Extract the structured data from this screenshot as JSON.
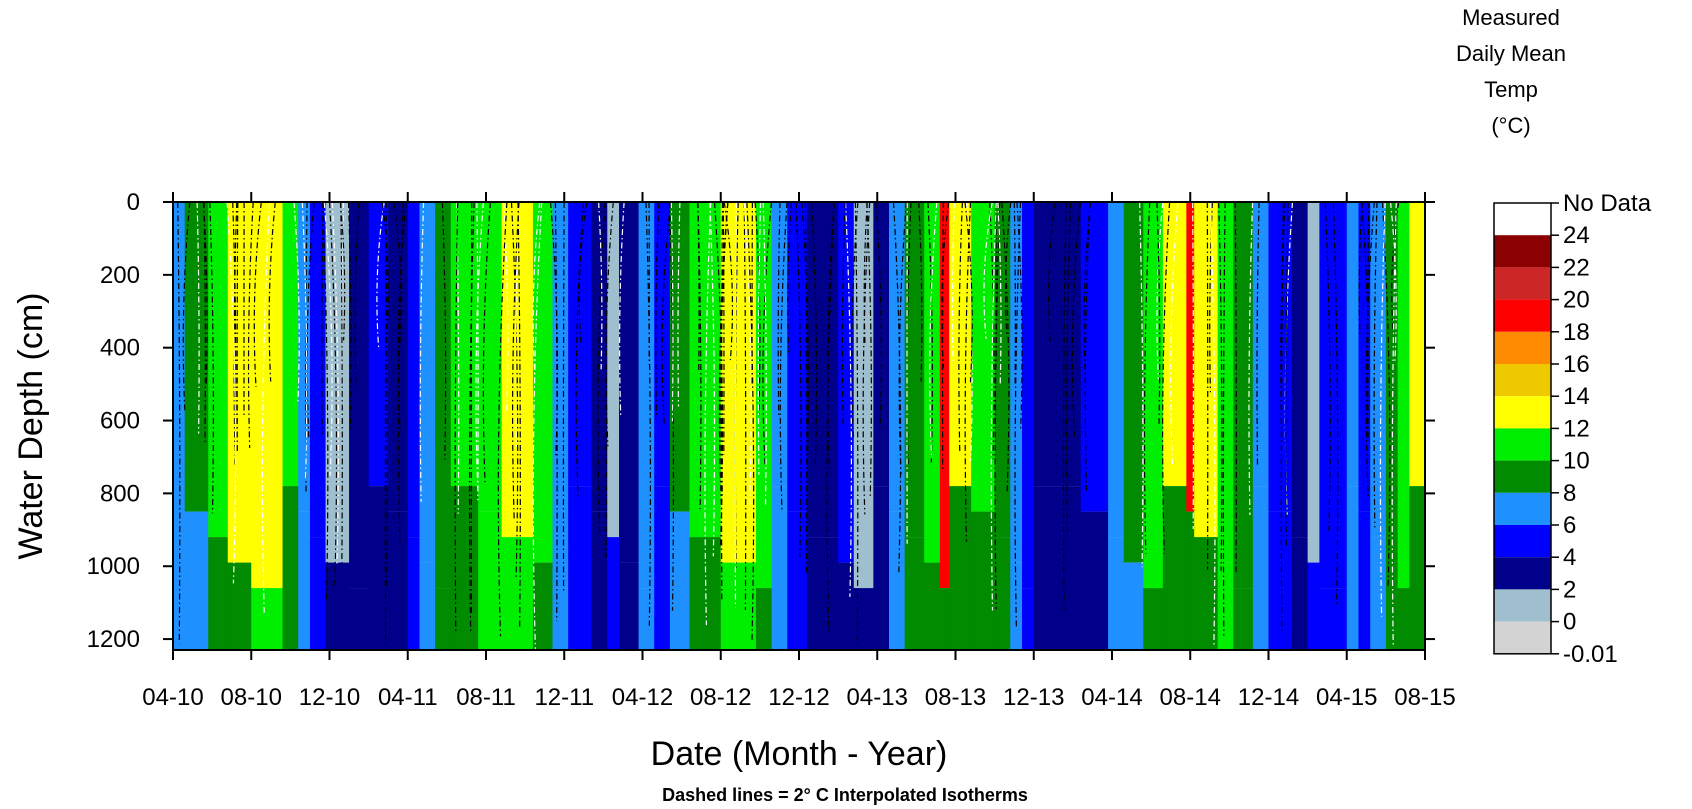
{
  "chart_data": {
    "type": "heatmap",
    "xlabel": "Date (Month - Year)",
    "ylabel": "Water Depth (cm)",
    "caption": "Dashed lines = 2° C Interpolated Isotherms",
    "legend_title": [
      "Measured",
      "Daily Mean",
      "Temp",
      "(°C)"
    ],
    "x_ticks": [
      "04-10",
      "08-10",
      "12-10",
      "04-11",
      "08-11",
      "12-11",
      "04-12",
      "08-12",
      "12-12",
      "04-13",
      "08-13",
      "12-13",
      "04-14",
      "08-14",
      "12-14",
      "04-15",
      "08-15"
    ],
    "y_ticks": [
      0,
      200,
      400,
      600,
      800,
      1000,
      1200
    ],
    "ylim": [
      0,
      1230
    ],
    "y_inverted": true,
    "legend_no_data_label": "No Data",
    "legend_breaks": [
      "24",
      "22",
      "20",
      "18",
      "16",
      "14",
      "12",
      "10",
      "8",
      "6",
      "4",
      "2",
      "0",
      "-0.01"
    ],
    "legend_colors": [
      "#ffffff",
      "#8b0000",
      "#cd2626",
      "#ff0000",
      "#ff8c00",
      "#eec900",
      "#ffff00",
      "#00ee00",
      "#008b00",
      "#1e90ff",
      "#0000ff",
      "#00008b",
      "#9fbfcf",
      "#d3d3d3"
    ],
    "isotherm_interval_c": 2,
    "columns": [
      {
        "x": 0.0,
        "c": "#1e90ff",
        "bottom_c": "#1e90ff"
      },
      {
        "x": 0.15,
        "c": "#008b00",
        "bottom_c": "#1e90ff"
      },
      {
        "x": 0.45,
        "c": "#00ee00",
        "bottom_c": "#008b00"
      },
      {
        "x": 0.7,
        "c": "#ffff00",
        "bottom_c": "#008b00"
      },
      {
        "x": 1.0,
        "c": "#ffff00",
        "bottom_c": "#00ee00"
      },
      {
        "x": 1.4,
        "c": "#00ee00",
        "bottom_c": "#008b00"
      },
      {
        "x": 1.6,
        "c": "#1e90ff",
        "bottom_c": "#1e90ff"
      },
      {
        "x": 1.75,
        "c": "#0000ff",
        "bottom_c": "#0000ff"
      },
      {
        "x": 1.95,
        "c": "#9fbfcf",
        "bottom_c": "#00008b"
      },
      {
        "x": 2.25,
        "c": "#00008b",
        "bottom_c": "#00008b"
      },
      {
        "x": 2.5,
        "c": "#0000ff",
        "bottom_c": "#00008b"
      },
      {
        "x": 2.75,
        "c": "#00008b",
        "bottom_c": "#00008b"
      },
      {
        "x": 3.0,
        "c": "#0000ff",
        "bottom_c": "#0000ff"
      },
      {
        "x": 3.15,
        "c": "#1e90ff",
        "bottom_c": "#1e90ff"
      },
      {
        "x": 3.35,
        "c": "#008b00",
        "bottom_c": "#008b00"
      },
      {
        "x": 3.55,
        "c": "#00ee00",
        "bottom_c": "#008b00"
      },
      {
        "x": 3.9,
        "c": "#00ee00",
        "bottom_c": "#00ee00"
      },
      {
        "x": 4.2,
        "c": "#ffff00",
        "bottom_c": "#00ee00"
      },
      {
        "x": 4.6,
        "c": "#00ee00",
        "bottom_c": "#008b00"
      },
      {
        "x": 4.85,
        "c": "#1e90ff",
        "bottom_c": "#1e90ff"
      },
      {
        "x": 5.05,
        "c": "#0000ff",
        "bottom_c": "#0000ff"
      },
      {
        "x": 5.35,
        "c": "#00008b",
        "bottom_c": "#00008b"
      },
      {
        "x": 5.55,
        "c": "#9fbfcf",
        "bottom_c": "#0000ff"
      },
      {
        "x": 5.7,
        "c": "#00008b",
        "bottom_c": "#00008b"
      },
      {
        "x": 5.95,
        "c": "#1e90ff",
        "bottom_c": "#1e90ff"
      },
      {
        "x": 6.15,
        "c": "#0000ff",
        "bottom_c": "#0000ff"
      },
      {
        "x": 6.35,
        "c": "#008b00",
        "bottom_c": "#1e90ff"
      },
      {
        "x": 6.6,
        "c": "#00ee00",
        "bottom_c": "#008b00"
      },
      {
        "x": 7.0,
        "c": "#ffff00",
        "bottom_c": "#00ee00"
      },
      {
        "x": 7.45,
        "c": "#00ee00",
        "bottom_c": "#008b00"
      },
      {
        "x": 7.65,
        "c": "#1e90ff",
        "bottom_c": "#1e90ff"
      },
      {
        "x": 7.85,
        "c": "#0000ff",
        "bottom_c": "#0000ff"
      },
      {
        "x": 8.1,
        "c": "#00008b",
        "bottom_c": "#00008b"
      },
      {
        "x": 8.5,
        "c": "#0000ff",
        "bottom_c": "#00008b"
      },
      {
        "x": 8.7,
        "c": "#9fbfcf",
        "bottom_c": "#00008b"
      },
      {
        "x": 8.95,
        "c": "#00008b",
        "bottom_c": "#00008b"
      },
      {
        "x": 9.15,
        "c": "#1e90ff",
        "bottom_c": "#1e90ff"
      },
      {
        "x": 9.35,
        "c": "#008b00",
        "bottom_c": "#008b00"
      },
      {
        "x": 9.6,
        "c": "#00ee00",
        "bottom_c": "#008b00"
      },
      {
        "x": 9.8,
        "c": "#ff0000",
        "bottom_c": "#008b00"
      },
      {
        "x": 9.92,
        "c": "#ffff00",
        "bottom_c": "#008b00"
      },
      {
        "x": 10.2,
        "c": "#00ee00",
        "bottom_c": "#008b00"
      },
      {
        "x": 10.5,
        "c": "#008b00",
        "bottom_c": "#008b00"
      },
      {
        "x": 10.7,
        "c": "#1e90ff",
        "bottom_c": "#1e90ff"
      },
      {
        "x": 10.85,
        "c": "#0000ff",
        "bottom_c": "#0000ff"
      },
      {
        "x": 11.0,
        "c": "#00008b",
        "bottom_c": "#00008b"
      },
      {
        "x": 11.6,
        "c": "#0000ff",
        "bottom_c": "#00008b"
      },
      {
        "x": 11.95,
        "c": "#1e90ff",
        "bottom_c": "#1e90ff"
      },
      {
        "x": 12.15,
        "c": "#008b00",
        "bottom_c": "#1e90ff"
      },
      {
        "x": 12.4,
        "c": "#00ee00",
        "bottom_c": "#008b00"
      },
      {
        "x": 12.65,
        "c": "#ffff00",
        "bottom_c": "#008b00"
      },
      {
        "x": 12.95,
        "c": "#ff0000",
        "bottom_c": "#008b00"
      },
      {
        "x": 13.05,
        "c": "#ffff00",
        "bottom_c": "#008b00"
      },
      {
        "x": 13.35,
        "c": "#00ee00",
        "bottom_c": "#00ee00"
      },
      {
        "x": 13.55,
        "c": "#008b00",
        "bottom_c": "#008b00"
      },
      {
        "x": 13.8,
        "c": "#1e90ff",
        "bottom_c": "#1e90ff"
      },
      {
        "x": 14.0,
        "c": "#0000ff",
        "bottom_c": "#0000ff"
      },
      {
        "x": 14.3,
        "c": "#00008b",
        "bottom_c": "#00008b"
      },
      {
        "x": 14.5,
        "c": "#9fbfcf",
        "bottom_c": "#0000ff"
      },
      {
        "x": 14.65,
        "c": "#0000ff",
        "bottom_c": "#0000ff"
      },
      {
        "x": 15.0,
        "c": "#1e90ff",
        "bottom_c": "#1e90ff"
      },
      {
        "x": 15.15,
        "c": "#0000ff",
        "bottom_c": "#0000ff"
      },
      {
        "x": 15.3,
        "c": "#1e90ff",
        "bottom_c": "#1e90ff"
      },
      {
        "x": 15.5,
        "c": "#008b00",
        "bottom_c": "#008b00"
      },
      {
        "x": 15.65,
        "c": "#00ee00",
        "bottom_c": "#008b00"
      },
      {
        "x": 15.8,
        "c": "#ffff00",
        "bottom_c": "#008b00"
      }
    ]
  }
}
